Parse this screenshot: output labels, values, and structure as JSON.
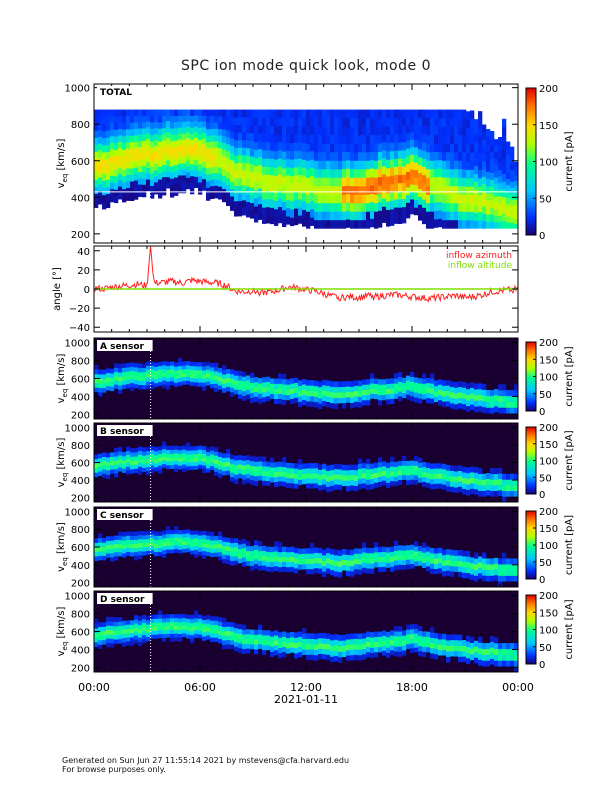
{
  "title": "SPC ion mode quick look, mode 0",
  "date_label": "2021-01-11",
  "footer": {
    "line1": "Generated on Sun Jun 27 11:55:14 2021 by mstevens@cfa.harvard.edu",
    "line2": "For browse purposes only."
  },
  "x_axis": {
    "ticks": [
      "00:00",
      "06:00",
      "12:00",
      "18:00",
      "00:00"
    ],
    "range_hours": [
      0,
      24
    ]
  },
  "colors": {
    "azimuth": "#ff2020",
    "altitude": "#7ee000",
    "noise_floor": "#1a0030"
  },
  "chart_data": [
    {
      "type": "heatmap",
      "panel_label": "TOTAL",
      "ylabel": "v",
      "ylabel_sub": "eq",
      "ylabel_unit": "[km/s]",
      "yticks": [
        "1000",
        "800",
        "600",
        "400",
        "200"
      ],
      "ylim": [
        150,
        1020
      ],
      "colorbar_label": "current [pA]",
      "colorbar_ticks": [
        "200",
        "150",
        "100",
        "50",
        "0"
      ],
      "colorbar_range": [
        0,
        200
      ],
      "mode": "total",
      "ref_line_v": 430,
      "marker_hour": 3.2
    },
    {
      "type": "line",
      "panel_label": "",
      "ylabel": "angle [°]",
      "yticks": [
        "40",
        "20",
        "0",
        "−20",
        "−40"
      ],
      "ylim": [
        -45,
        45
      ],
      "legend": [
        "inflow azimuth",
        "inflow altitude"
      ],
      "legend_position": "top-right",
      "series": [
        {
          "name": "inflow azimuth",
          "x": [
            0,
            0.5,
            1,
            1.5,
            2,
            2.5,
            3,
            3.2,
            3.4,
            4,
            4.5,
            5,
            5.5,
            6,
            6.5,
            7,
            7.4,
            7.8,
            8,
            8.5,
            9,
            9.5,
            10,
            10.5,
            11,
            11.5,
            12,
            12.5,
            13,
            13.5,
            14,
            14.5,
            15,
            15.5,
            16,
            16.5,
            17,
            17.5,
            18,
            18.5,
            19,
            19.5,
            20,
            20.5,
            21,
            21.5,
            22,
            22.5,
            23,
            23.5,
            24
          ],
          "y": [
            1,
            0,
            2,
            3,
            4,
            5,
            3,
            45,
            6,
            7,
            8,
            6,
            9,
            8,
            7,
            6,
            4,
            0,
            -2,
            -3,
            -2,
            -4,
            -3,
            -1,
            2,
            1,
            -1,
            -2,
            -5,
            -8,
            -9,
            -8,
            -9,
            -7,
            -8,
            -7,
            -6,
            -7,
            -8,
            -9,
            -10,
            -9,
            -8,
            -7,
            -9,
            -8,
            -6,
            -3,
            -2,
            -1,
            0
          ]
        },
        {
          "name": "inflow altitude",
          "x": [
            0,
            24
          ],
          "y": [
            0,
            0
          ]
        }
      ]
    },
    {
      "type": "heatmap",
      "panel_label": "A sensor",
      "ylabel": "v",
      "ylabel_sub": "eq",
      "ylabel_unit": "[km/s]",
      "yticks": [
        "1000",
        "800",
        "600",
        "400",
        "200"
      ],
      "ylim": [
        150,
        1050
      ],
      "colorbar_label": "current [pA]",
      "colorbar_ticks": [
        "200",
        "150",
        "100",
        "50",
        "0"
      ],
      "colorbar_range": [
        0,
        200
      ],
      "mode": "sensor",
      "marker_hour": 3.2
    },
    {
      "type": "heatmap",
      "panel_label": "B sensor",
      "ylabel": "v",
      "ylabel_sub": "eq",
      "ylabel_unit": "[km/s]",
      "yticks": [
        "1000",
        "800",
        "600",
        "400",
        "200"
      ],
      "ylim": [
        150,
        1050
      ],
      "colorbar_label": "current [pA]",
      "colorbar_ticks": [
        "200",
        "150",
        "100",
        "50",
        "0"
      ],
      "colorbar_range": [
        0,
        200
      ],
      "mode": "sensor",
      "marker_hour": 3.2
    },
    {
      "type": "heatmap",
      "panel_label": "C sensor",
      "ylabel": "v",
      "ylabel_sub": "eq",
      "ylabel_unit": "[km/s]",
      "yticks": [
        "1000",
        "800",
        "600",
        "400",
        "200"
      ],
      "ylim": [
        150,
        1050
      ],
      "colorbar_label": "current [pA]",
      "colorbar_ticks": [
        "200",
        "150",
        "100",
        "50",
        "0"
      ],
      "colorbar_range": [
        0,
        200
      ],
      "mode": "sensor",
      "marker_hour": 3.2
    },
    {
      "type": "heatmap",
      "panel_label": "D sensor",
      "ylabel": "v",
      "ylabel_sub": "eq",
      "ylabel_unit": "[km/s]",
      "yticks": [
        "1000",
        "800",
        "600",
        "400",
        "200"
      ],
      "ylim": [
        150,
        1050
      ],
      "colorbar_label": "current [pA]",
      "colorbar_ticks": [
        "200",
        "150",
        "100",
        "50",
        "0"
      ],
      "colorbar_range": [
        0,
        200
      ],
      "mode": "sensor",
      "marker_hour": 3.2
    }
  ],
  "solar_wind_core": {
    "x_hours": [
      0,
      1,
      2,
      3,
      4,
      5,
      6,
      7,
      8,
      9,
      10,
      11,
      12,
      13,
      14,
      15,
      16,
      17,
      18,
      19,
      20,
      21,
      22,
      23,
      24
    ],
    "v_kms": [
      560,
      590,
      620,
      630,
      650,
      660,
      650,
      610,
      540,
      510,
      490,
      470,
      460,
      440,
      420,
      450,
      470,
      480,
      520,
      470,
      430,
      400,
      380,
      350,
      330
    ]
  }
}
